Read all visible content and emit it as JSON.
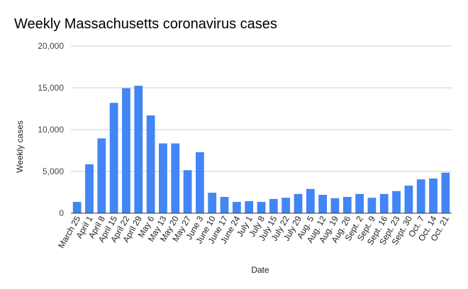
{
  "chart_data": {
    "type": "bar",
    "title": "Weekly Massachusetts coronavirus cases",
    "xlabel": "Date",
    "ylabel": "Weekly cases",
    "ylim": [
      0,
      20000
    ],
    "yticks": [
      0,
      5000,
      10000,
      15000,
      20000
    ],
    "ytick_labels": [
      "0",
      "5,000",
      "10,000",
      "15,000",
      "20,000"
    ],
    "grid": true,
    "legend": "none",
    "bar_color": "#4285f4",
    "categories": [
      "March 25",
      "April 1",
      "April 8",
      "April 15",
      "April 22",
      "April 29",
      "May 6",
      "May 13",
      "May 20",
      "May 27",
      "June 3",
      "June 10",
      "June 17",
      "June 24",
      "July 1",
      "July 8",
      "July 15",
      "July 22",
      "July 29",
      "Aug. 5",
      "Aug. 12",
      "Aug. 19",
      "Aug. 26",
      "Sept. 2",
      "Sept. 9",
      "Sept. 16",
      "Sept. 23",
      "Sept. 30",
      "Oct. 7",
      "Oct. 14",
      "Oct. 21"
    ],
    "values": [
      1350,
      5850,
      8950,
      13200,
      14950,
      15250,
      11700,
      8350,
      8350,
      5150,
      7300,
      2450,
      1950,
      1350,
      1450,
      1350,
      1700,
      1850,
      2300,
      2900,
      2200,
      1800,
      1950,
      2300,
      1850,
      2300,
      2650,
      3300,
      4050,
      4150,
      4850
    ]
  }
}
